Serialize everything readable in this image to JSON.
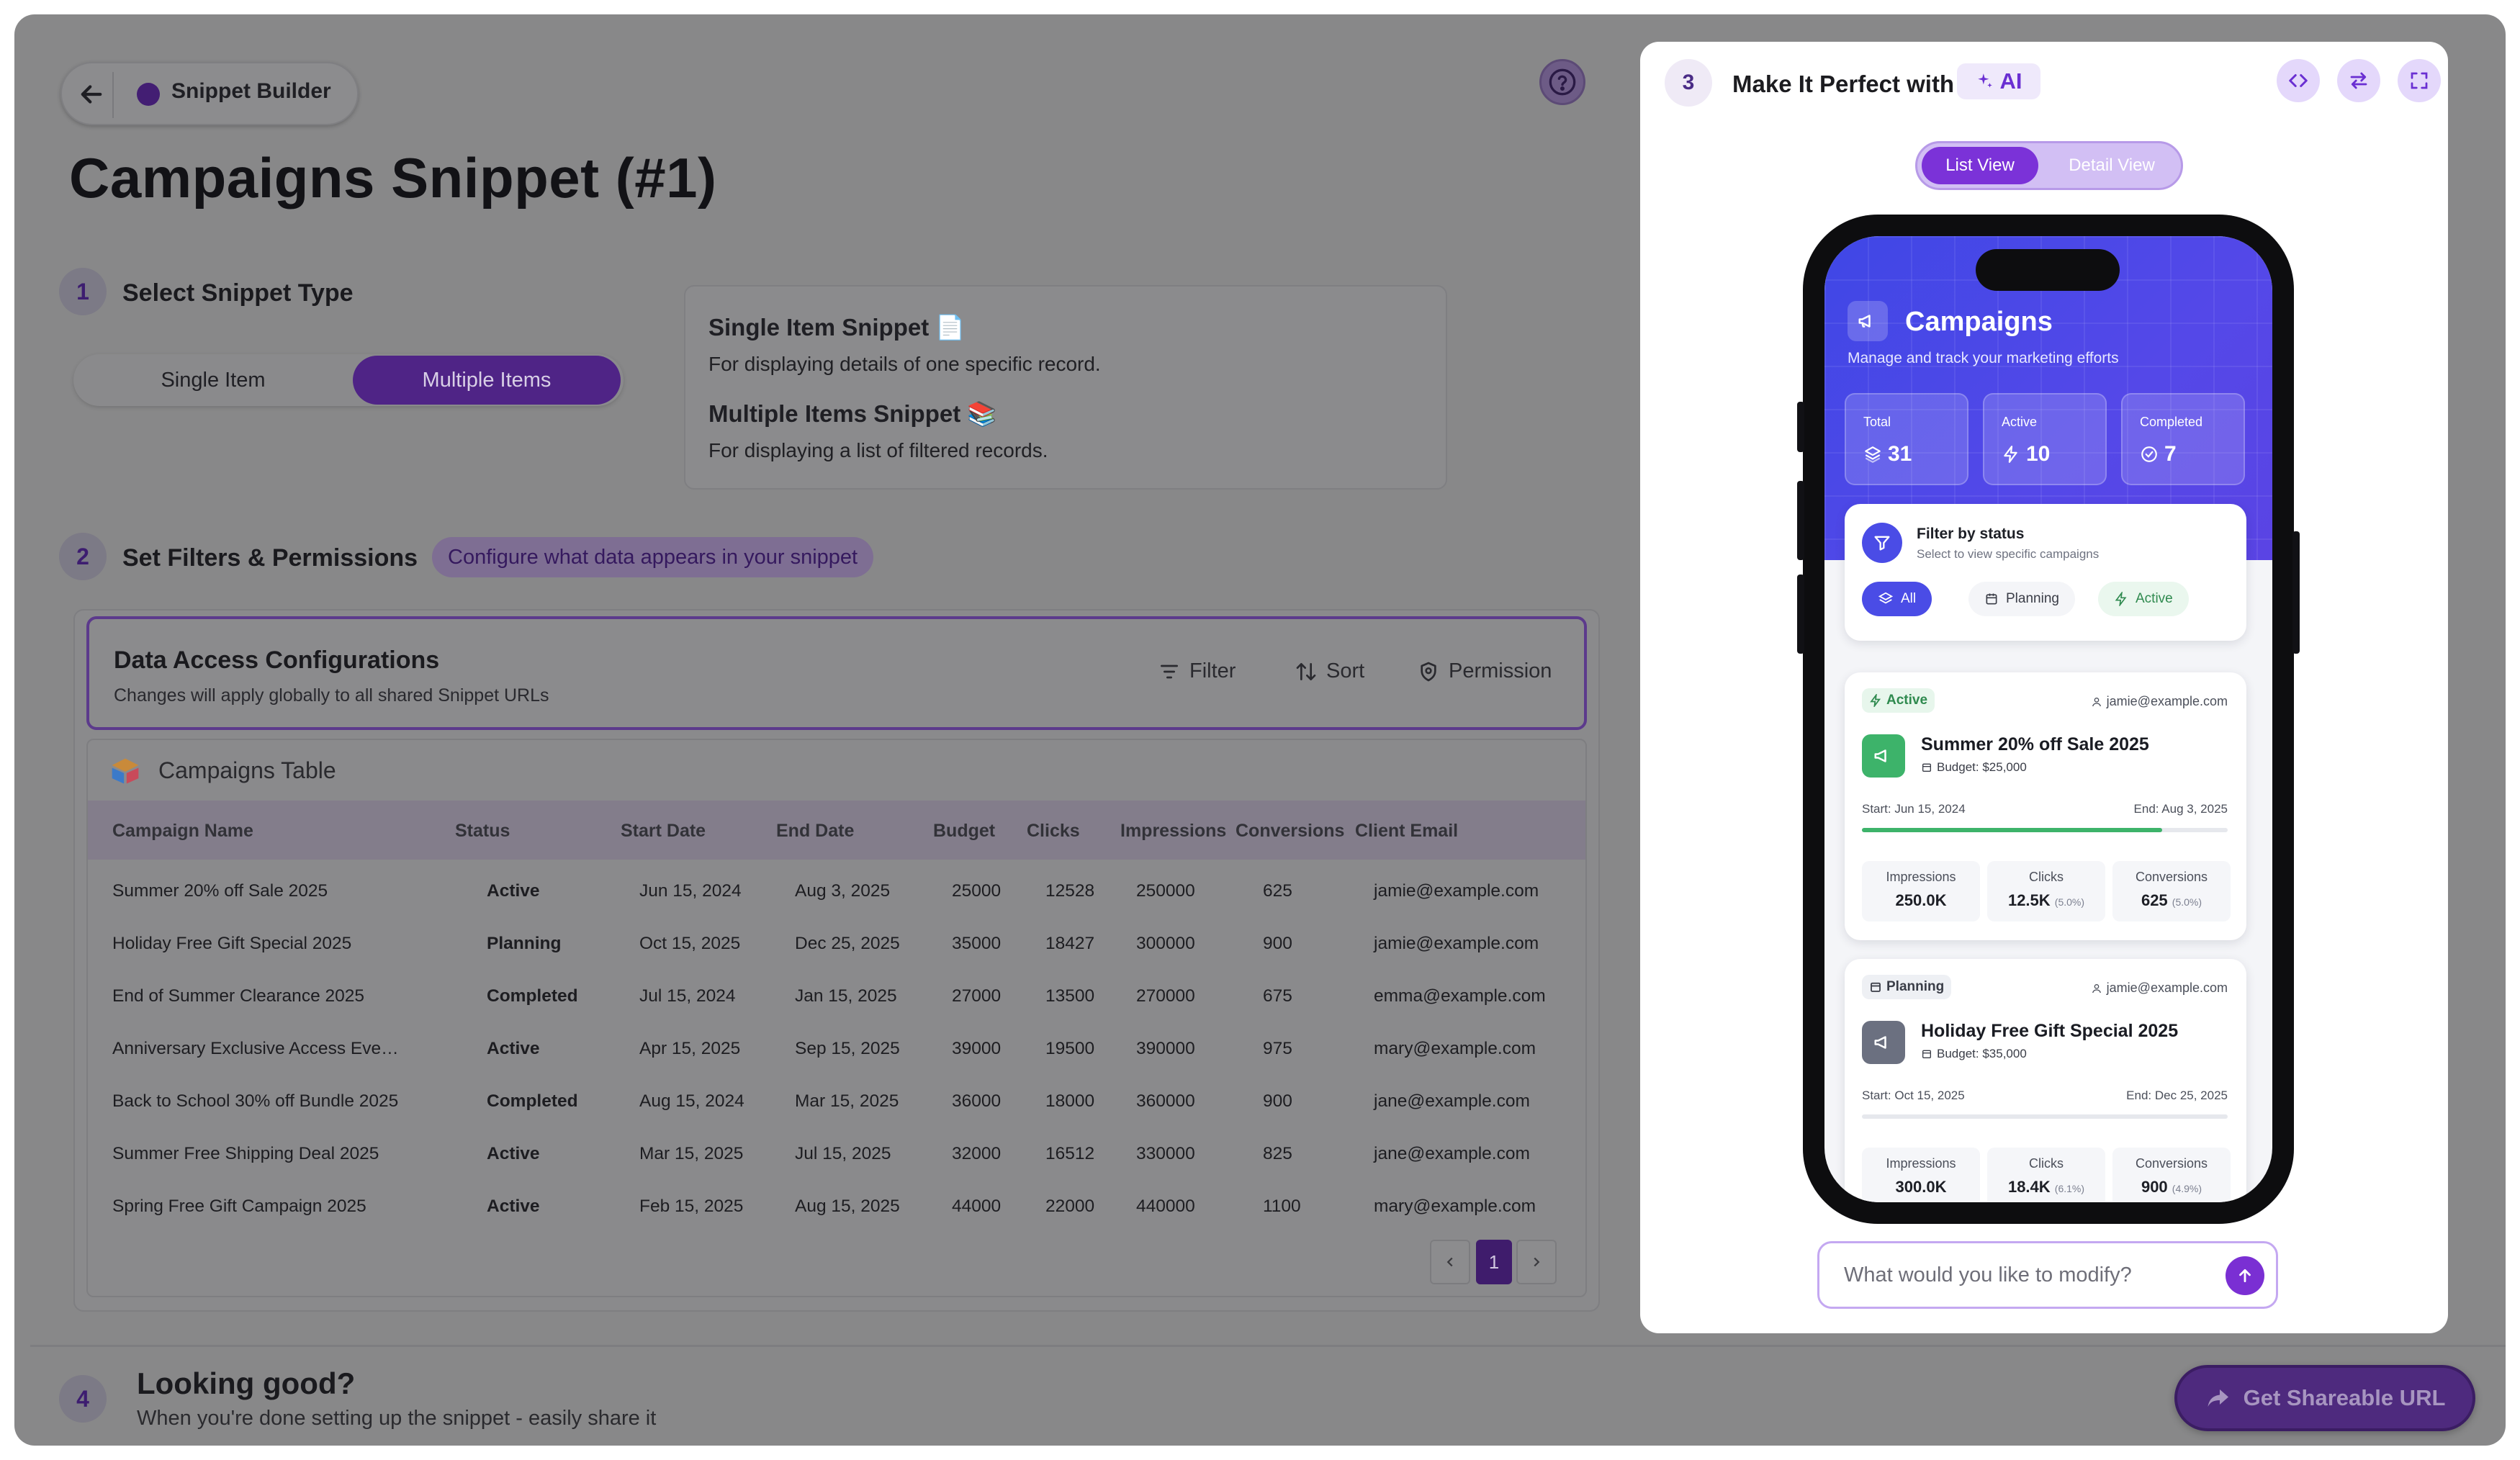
{
  "header": {
    "app_name": "Snippet Builder",
    "page_title": "Campaigns Snippet (#1)"
  },
  "steps": [
    {
      "num": "1",
      "label": "Select Snippet Type"
    },
    {
      "num": "2",
      "label": "Set Filters & Permissions",
      "tag": "Configure what data appears in your snippet"
    },
    {
      "num": "3",
      "label": "Make It Perfect",
      "with": "with",
      "ai": "AI"
    },
    {
      "num": "4",
      "label": "Looking good?",
      "sub": "When you're done setting up the snippet - easily share it"
    }
  ],
  "snippet_type": {
    "options": [
      "Single Item",
      "Multiple Items"
    ],
    "selected": "Multiple Items"
  },
  "info": {
    "single_title": "Single Item Snippet 📄",
    "single_desc": "For displaying details of one specific record.",
    "multi_title": "Multiple Items Snippet 📚",
    "multi_desc": "For displaying a list of filtered records."
  },
  "data_access": {
    "title": "Data Access Configurations",
    "subtitle": "Changes will apply globally to all shared Snippet URLs",
    "filter": "Filter",
    "sort": "Sort",
    "permission": "Permission"
  },
  "table": {
    "name": "Campaigns Table",
    "columns": [
      "Campaign Name",
      "Status",
      "Start Date",
      "End Date",
      "Budget",
      "Clicks",
      "Impressions",
      "Conversions",
      "Client Email"
    ],
    "rows": [
      [
        "Summer 20% off Sale 2025",
        "Active",
        "Jun 15, 2024",
        "Aug 3, 2025",
        "25000",
        "12528",
        "250000",
        "625",
        "jamie@example.com"
      ],
      [
        "Holiday Free Gift Special 2025",
        "Planning",
        "Oct 15, 2025",
        "Dec 25, 2025",
        "35000",
        "18427",
        "300000",
        "900",
        "jamie@example.com"
      ],
      [
        "End of Summer Clearance 2025",
        "Completed",
        "Jul 15, 2024",
        "Jan 15, 2025",
        "27000",
        "13500",
        "270000",
        "675",
        "emma@example.com"
      ],
      [
        "Anniversary Exclusive Access Eve…",
        "Active",
        "Apr 15, 2025",
        "Sep 15, 2025",
        "39000",
        "19500",
        "390000",
        "975",
        "mary@example.com"
      ],
      [
        "Back to School 30% off Bundle 2025",
        "Completed",
        "Aug 15, 2024",
        "Mar 15, 2025",
        "36000",
        "18000",
        "360000",
        "900",
        "jane@example.com"
      ],
      [
        "Summer Free Shipping Deal 2025",
        "Active",
        "Mar 15, 2025",
        "Jul 15, 2025",
        "32000",
        "16512",
        "330000",
        "825",
        "jane@example.com"
      ],
      [
        "Spring Free Gift Campaign 2025",
        "Active",
        "Feb 15, 2025",
        "Aug 15, 2025",
        "44000",
        "22000",
        "440000",
        "1100",
        "mary@example.com"
      ]
    ],
    "page": "1"
  },
  "share_button": "Get Shareable URL",
  "preview": {
    "view_toggle": [
      "List View",
      "Detail View"
    ],
    "selected_view": "List View",
    "title": "Campaigns",
    "subtitle": "Manage and track your marketing efforts",
    "stats": [
      {
        "label": "Total",
        "value": "31",
        "icon": "layers-icon"
      },
      {
        "label": "Active",
        "value": "10",
        "icon": "bolt-icon"
      },
      {
        "label": "Completed",
        "value": "7",
        "icon": "check-circle-icon"
      }
    ],
    "filter": {
      "title": "Filter by status",
      "subtitle": "Select to view specific campaigns",
      "chips": [
        "All",
        "Planning",
        "Active"
      ]
    },
    "cards": [
      {
        "status": "Active",
        "email": "jamie@example.com",
        "title": "Summer 20% off Sale 2025",
        "budget": "Budget: $25,000",
        "start": "Start: Jun 15, 2024",
        "end": "End: Aug 3, 2025",
        "progress": 0.82,
        "metrics": [
          {
            "k": "Impressions",
            "v": "250.0K",
            "p": ""
          },
          {
            "k": "Clicks",
            "v": "12.5K",
            "p": "(5.0%)"
          },
          {
            "k": "Conversions",
            "v": "625",
            "p": "(5.0%)"
          }
        ]
      },
      {
        "status": "Planning",
        "email": "jamie@example.com",
        "title": "Holiday Free Gift Special 2025",
        "budget": "Budget: $35,000",
        "start": "Start: Oct 15, 2025",
        "end": "End: Dec 25, 2025",
        "progress": 0,
        "metrics": [
          {
            "k": "Impressions",
            "v": "300.0K",
            "p": ""
          },
          {
            "k": "Clicks",
            "v": "18.4K",
            "p": "(6.1%)"
          },
          {
            "k": "Conversions",
            "v": "900",
            "p": "(4.9%)"
          }
        ]
      }
    ],
    "input_placeholder": "What would you like to modify?"
  },
  "colors": {
    "accent": "#7b32d8",
    "brand_dark": "#4f2486",
    "hero_blue": "#4a47e6",
    "active_green": "#3db36a",
    "planning_gray": "#6b7080"
  }
}
